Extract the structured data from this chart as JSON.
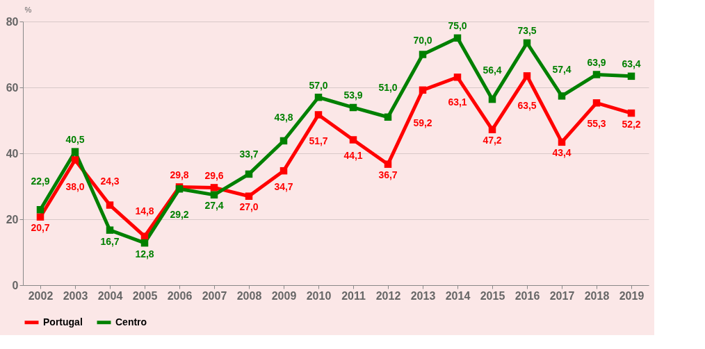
{
  "chart_data": {
    "type": "line",
    "ylabel": "%",
    "categories": [
      "2002",
      "2003",
      "2004",
      "2005",
      "2006",
      "2007",
      "2008",
      "2009",
      "2010",
      "2011",
      "2012",
      "2013",
      "2014",
      "2015",
      "2016",
      "2017",
      "2018",
      "2019"
    ],
    "series": [
      {
        "name": "Portugal",
        "color": "#ff0000",
        "values": [
          20.7,
          38.0,
          24.3,
          14.8,
          29.8,
          29.6,
          27.0,
          34.7,
          51.7,
          44.1,
          36.7,
          59.2,
          63.1,
          47.2,
          63.5,
          43.4,
          55.3,
          52.2
        ],
        "value_labels": [
          "20,7",
          "38,0",
          "24,3",
          "14,8",
          "29,8",
          "29,6",
          "27,0",
          "34,7",
          "51,7",
          "44,1",
          "36,7",
          "59,2",
          "63,1",
          "47,2",
          "63,5",
          "43,4",
          "55,3",
          "52,2"
        ]
      },
      {
        "name": "Centro",
        "color": "#008000",
        "values": [
          22.9,
          40.5,
          16.7,
          12.8,
          29.2,
          27.4,
          33.7,
          43.8,
          57.0,
          53.9,
          51.0,
          70.0,
          75.0,
          56.4,
          73.5,
          57.4,
          63.9,
          63.4
        ],
        "value_labels": [
          "22,9",
          "40,5",
          "16,7",
          "12,8",
          "29,2",
          "27,4",
          "33,7",
          "43,8",
          "57,0",
          "53,9",
          "51,0",
          "70,0",
          "75,0",
          "56,4",
          "73,5",
          "57,4",
          "63,9",
          "63,4"
        ]
      }
    ],
    "ylim": [
      0,
      80
    ],
    "yticks": [
      0,
      20,
      40,
      60,
      80
    ],
    "grid": "y",
    "legend": "bottom",
    "marker": "square",
    "line_style": "solid"
  }
}
